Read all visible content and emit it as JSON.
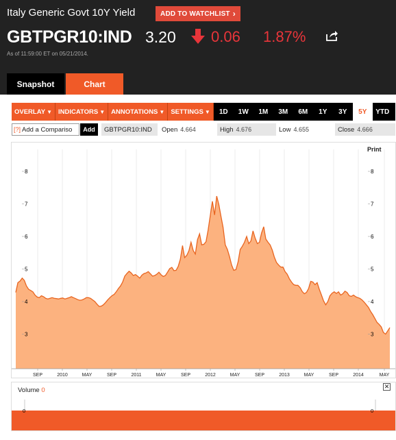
{
  "security": {
    "name": "Italy Generic Govt 10Y Yield",
    "ticker": "GBTPGR10:IND",
    "price": "3.20",
    "change": "0.06",
    "change_pct": "1.87%",
    "as_of": "As of 11:59:00 ET on 05/21/2014."
  },
  "buttons": {
    "watchlist": "ADD TO WATCHLIST",
    "add": "Add",
    "print": "Print"
  },
  "tabs": [
    {
      "label": "Snapshot"
    },
    {
      "label": "Chart"
    }
  ],
  "toolbar": {
    "menus": [
      "OVERLAY",
      "INDICATORS",
      "ANNOTATIONS",
      "SETTINGS"
    ],
    "ranges": [
      "1D",
      "1W",
      "1M",
      "3M",
      "6M",
      "1Y",
      "3Y",
      "5Y",
      "YTD"
    ],
    "active_range": "5Y"
  },
  "info": {
    "compare_placeholder": "Add a Compariso",
    "help": "[?]",
    "ticker": "GBTPGR10:IND",
    "open_label": "Open",
    "open_value": "4.664",
    "high_label": "High",
    "high_value": "4.676",
    "low_label": "Low",
    "low_value": "4.655",
    "close_label": "Close",
    "close_value": "4.666"
  },
  "volume": {
    "label": "Volume",
    "value": "0",
    "close_symbol": "✕",
    "axis_tick": "0"
  },
  "colors": {
    "accent": "#f05a28",
    "down": "#e8353a",
    "fill": "#fcb27f",
    "line": "#e8641f",
    "header": "#222222"
  },
  "chart_data": {
    "type": "area",
    "y_ticks": [
      "8",
      "7",
      "6",
      "5",
      "4",
      "3"
    ],
    "ylim": [
      1.9,
      8.6
    ],
    "x_tick_labels": [
      "SEP",
      "2010",
      "MAY",
      "SEP",
      "2011",
      "MAY",
      "SEP",
      "2012",
      "MAY",
      "SEP",
      "2013",
      "MAY",
      "SEP",
      "2014",
      "MAY"
    ],
    "series": [
      {
        "values": [
          4.28,
          4.58,
          4.63,
          4.72,
          4.65,
          4.48,
          4.38,
          4.34,
          4.3,
          4.2,
          4.14,
          4.12,
          4.18,
          4.15,
          4.1,
          4.08,
          4.1,
          4.12,
          4.1,
          4.09,
          4.08,
          4.1,
          4.11,
          4.08,
          4.1,
          4.12,
          4.15,
          4.12,
          4.09,
          4.06,
          4.04,
          4.05,
          4.08,
          4.12,
          4.12,
          4.1,
          4.05,
          4.0,
          3.92,
          3.85,
          3.86,
          3.9,
          3.97,
          4.05,
          4.12,
          4.18,
          4.22,
          4.3,
          4.4,
          4.48,
          4.6,
          4.78,
          4.86,
          4.93,
          4.88,
          4.8,
          4.83,
          4.78,
          4.72,
          4.81,
          4.86,
          4.88,
          4.92,
          4.85,
          4.78,
          4.8,
          4.84,
          4.9,
          4.82,
          4.77,
          4.8,
          4.9,
          5.01,
          5.05,
          4.95,
          4.96,
          5.08,
          5.3,
          5.72,
          5.35,
          5.42,
          5.56,
          5.82,
          5.57,
          5.46,
          5.9,
          6.08,
          5.74,
          5.76,
          5.84,
          6.2,
          6.64,
          7.08,
          6.66,
          7.24,
          6.98,
          6.62,
          6.28,
          5.74,
          5.6,
          5.38,
          5.12,
          4.96,
          4.98,
          5.22,
          5.6,
          5.7,
          5.82,
          6.0,
          5.78,
          5.86,
          6.17,
          5.95,
          5.78,
          5.82,
          6.11,
          6.3,
          5.92,
          5.82,
          5.74,
          5.58,
          5.36,
          5.2,
          5.12,
          5.06,
          5.06,
          4.92,
          4.84,
          4.7,
          4.6,
          4.52,
          4.5,
          4.5,
          4.43,
          4.31,
          4.24,
          4.28,
          4.4,
          4.62,
          4.6,
          4.52,
          4.58,
          4.38,
          4.2,
          4.02,
          3.9,
          4.0,
          4.18,
          4.26,
          4.3,
          4.25,
          4.3,
          4.2,
          4.24,
          4.32,
          4.28,
          4.18,
          4.16,
          4.2,
          4.15,
          4.12,
          4.1,
          4.05,
          3.98,
          3.9,
          3.82,
          3.7,
          3.6,
          3.48,
          3.36,
          3.3,
          3.22,
          3.05,
          3.0,
          3.1,
          3.2
        ]
      }
    ]
  }
}
